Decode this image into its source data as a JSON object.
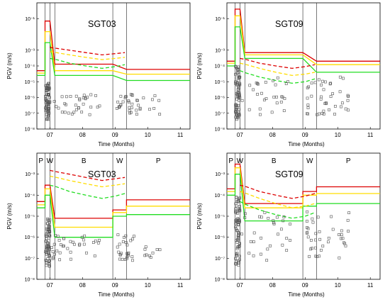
{
  "chart_data": [
    {
      "type": "scatter",
      "title": "SGT03",
      "xlabel": "Time (Months)",
      "ylabel": "PGV (m/s)",
      "y_scale": "log",
      "ylim": [
        1e-08,
        1
      ],
      "xlim": [
        6.6,
        11.3
      ],
      "x_ticks": [
        "07",
        "08",
        "09",
        "10",
        "11"
      ],
      "y_ticks": [
        "10⁻⁸",
        "10⁻⁷",
        "10⁻⁶",
        "10⁻⁵",
        "10⁻⁴",
        "10⁻³",
        "10⁻¹"
      ],
      "period_boundaries": [
        6.85,
        7.0,
        7.15,
        8.93,
        9.35
      ],
      "period_labels": [],
      "colors": {
        "red": "#dd0000",
        "yellow": "#ffdd00",
        "green": "#22dd22",
        "marker": "#555555"
      },
      "series": [
        {
          "color": "red",
          "style": "solid",
          "points": [
            [
              6.6,
              5e-05
            ],
            [
              6.85,
              5e-05
            ],
            [
              6.85,
              0.07
            ],
            [
              7.0,
              0.07
            ],
            [
              7.15,
              0.00013
            ],
            [
              8.93,
              0.00013
            ],
            [
              9.35,
              6e-05
            ],
            [
              11.3,
              6e-05
            ]
          ]
        },
        {
          "color": "yellow",
          "style": "solid",
          "points": [
            [
              6.6,
              3.5e-05
            ],
            [
              6.85,
              3.5e-05
            ],
            [
              6.85,
              0.015
            ],
            [
              7.0,
              0.015
            ],
            [
              7.15,
              5e-05
            ],
            [
              8.93,
              5e-05
            ],
            [
              9.35,
              3e-05
            ],
            [
              11.3,
              3e-05
            ]
          ]
        },
        {
          "color": "green",
          "style": "solid",
          "points": [
            [
              6.6,
              2.5e-05
            ],
            [
              6.85,
              2.5e-05
            ],
            [
              6.85,
              0.003
            ],
            [
              7.0,
              0.003
            ],
            [
              7.15,
              2.5e-05
            ],
            [
              8.93,
              2.5e-05
            ],
            [
              9.35,
              1.2e-05
            ],
            [
              11.3,
              1.2e-05
            ]
          ]
        },
        {
          "color": "red",
          "style": "dashed",
          "points": [
            [
              7.0,
              0.0015
            ],
            [
              7.2,
              0.0013
            ],
            [
              7.6,
              0.001
            ],
            [
              8.1,
              0.0007
            ],
            [
              8.6,
              0.0005
            ],
            [
              9.0,
              0.0006
            ],
            [
              9.3,
              0.0007
            ]
          ]
        },
        {
          "color": "yellow",
          "style": "dashed",
          "points": [
            [
              7.0,
              0.0008
            ],
            [
              7.2,
              0.0007
            ],
            [
              7.6,
              0.0005
            ],
            [
              8.1,
              0.00035
            ],
            [
              8.6,
              0.00025
            ],
            [
              9.0,
              0.0003
            ],
            [
              9.3,
              0.00035
            ]
          ]
        },
        {
          "color": "green",
          "style": "dashed",
          "points": [
            [
              7.0,
              0.0003
            ],
            [
              7.2,
              0.00025
            ],
            [
              7.6,
              0.00015
            ],
            [
              8.1,
              0.0001
            ],
            [
              8.6,
              7e-05
            ],
            [
              9.0,
              9e-05
            ],
            [
              9.3,
              0.00012
            ]
          ]
        }
      ]
    },
    {
      "type": "scatter",
      "title": "SGT09",
      "xlabel": "Time (Months)",
      "ylabel": "PGV (m/s)",
      "y_scale": "log",
      "ylim": [
        1e-08,
        1
      ],
      "xlim": [
        6.6,
        11.3
      ],
      "x_ticks": [
        "07",
        "08",
        "09",
        "10",
        "11"
      ],
      "y_ticks": [
        "10⁻⁸",
        "10⁻⁷",
        "10⁻⁶",
        "10⁻⁵",
        "10⁻⁴",
        "10⁻³",
        "10⁻¹"
      ],
      "period_boundaries": [
        6.85,
        7.0,
        7.15,
        8.93,
        9.35
      ],
      "period_labels": [],
      "colors": {
        "red": "#dd0000",
        "yellow": "#ffdd00",
        "green": "#22dd22",
        "marker": "#555555"
      },
      "series": [
        {
          "color": "red",
          "style": "solid",
          "points": [
            [
              6.6,
              0.0002
            ],
            [
              6.85,
              0.0002
            ],
            [
              6.85,
              0.4
            ],
            [
              7.0,
              0.4
            ],
            [
              7.15,
              0.0007
            ],
            [
              8.93,
              0.0007
            ],
            [
              9.35,
              0.0002
            ],
            [
              11.3,
              0.0002
            ]
          ]
        },
        {
          "color": "yellow",
          "style": "solid",
          "points": [
            [
              6.6,
              0.00015
            ],
            [
              6.85,
              0.00015
            ],
            [
              6.85,
              0.15
            ],
            [
              7.0,
              0.15
            ],
            [
              7.15,
              0.0005
            ],
            [
              8.93,
              0.0005
            ],
            [
              9.35,
              0.00012
            ],
            [
              11.3,
              0.00012
            ]
          ]
        },
        {
          "color": "green",
          "style": "solid",
          "points": [
            [
              6.6,
              0.0001
            ],
            [
              6.85,
              0.0001
            ],
            [
              6.85,
              0.03
            ],
            [
              7.0,
              0.03
            ],
            [
              7.15,
              0.0003
            ],
            [
              8.93,
              0.0003
            ],
            [
              9.35,
              4e-05
            ],
            [
              11.3,
              4e-05
            ]
          ]
        },
        {
          "color": "red",
          "style": "dashed",
          "points": [
            [
              7.0,
              0.0003
            ],
            [
              7.2,
              0.00025
            ],
            [
              7.6,
              0.00015
            ],
            [
              8.1,
              0.0001
            ],
            [
              8.6,
              7e-05
            ],
            [
              9.0,
              9e-05
            ],
            [
              9.3,
              0.00012
            ]
          ]
        },
        {
          "color": "yellow",
          "style": "dashed",
          "points": [
            [
              7.0,
              0.00015
            ],
            [
              7.2,
              0.00012
            ],
            [
              7.6,
              7e-05
            ],
            [
              8.1,
              4e-05
            ],
            [
              8.6,
              2.5e-05
            ],
            [
              9.0,
              3e-05
            ],
            [
              9.3,
              4e-05
            ]
          ]
        },
        {
          "color": "green",
          "style": "dashed",
          "points": [
            [
              7.0,
              5e-05
            ],
            [
              7.2,
              3.5e-05
            ],
            [
              7.6,
              2e-05
            ],
            [
              8.1,
              1.2e-05
            ],
            [
              8.6,
              8e-06
            ],
            [
              9.0,
              1e-05
            ],
            [
              9.3,
              1.5e-05
            ]
          ]
        }
      ]
    },
    {
      "type": "scatter",
      "title": "SGT03",
      "xlabel": "Time (Months)",
      "ylabel": "PGV (m/s)",
      "y_scale": "log",
      "ylim": [
        1e-08,
        0.01
      ],
      "xlim": [
        6.6,
        11.3
      ],
      "x_ticks": [
        "07",
        "08",
        "09",
        "10",
        "11"
      ],
      "y_ticks": [
        "10⁻⁸",
        "10⁻⁷",
        "10⁻⁶",
        "10⁻⁵",
        "10⁻⁴",
        "10⁻³"
      ],
      "period_boundaries": [
        6.85,
        7.0,
        7.15,
        8.93,
        9.35
      ],
      "period_labels": [
        "P",
        "W",
        "B",
        "W",
        "P"
      ],
      "colors": {
        "red": "#dd0000",
        "yellow": "#ffdd00",
        "green": "#22dd22",
        "marker": "#555555"
      },
      "series": [
        {
          "color": "red",
          "style": "solid",
          "points": [
            [
              6.6,
              5e-05
            ],
            [
              6.85,
              5e-05
            ],
            [
              6.85,
              0.0003
            ],
            [
              7.0,
              0.0003
            ],
            [
              7.15,
              8e-06
            ],
            [
              8.93,
              8e-06
            ],
            [
              8.93,
              2e-05
            ],
            [
              9.35,
              2e-05
            ],
            [
              9.35,
              6e-05
            ],
            [
              11.3,
              6e-05
            ]
          ]
        },
        {
          "color": "yellow",
          "style": "solid",
          "points": [
            [
              6.6,
              3.5e-05
            ],
            [
              6.85,
              3.5e-05
            ],
            [
              6.85,
              0.0002
            ],
            [
              7.0,
              0.0002
            ],
            [
              7.15,
              3e-06
            ],
            [
              8.93,
              3e-06
            ],
            [
              8.93,
              1.5e-05
            ],
            [
              9.35,
              1.5e-05
            ],
            [
              9.35,
              3e-05
            ],
            [
              11.3,
              3e-05
            ]
          ]
        },
        {
          "color": "green",
          "style": "solid",
          "points": [
            [
              6.6,
              2.5e-05
            ],
            [
              6.85,
              2.5e-05
            ],
            [
              6.85,
              0.0001
            ],
            [
              7.0,
              0.0001
            ],
            [
              7.15,
              1e-06
            ],
            [
              8.93,
              1e-06
            ],
            [
              8.93,
              1e-05
            ],
            [
              9.35,
              1e-05
            ],
            [
              9.35,
              1.2e-05
            ],
            [
              11.3,
              1.2e-05
            ]
          ]
        },
        {
          "color": "red",
          "style": "dashed",
          "points": [
            [
              7.0,
              0.0015
            ],
            [
              7.2,
              0.0013
            ],
            [
              7.6,
              0.001
            ],
            [
              8.1,
              0.0007
            ],
            [
              8.6,
              0.0005
            ],
            [
              9.0,
              0.0006
            ],
            [
              9.3,
              0.0007
            ]
          ]
        },
        {
          "color": "yellow",
          "style": "dashed",
          "points": [
            [
              7.0,
              0.0008
            ],
            [
              7.2,
              0.0007
            ],
            [
              7.6,
              0.0005
            ],
            [
              8.1,
              0.00035
            ],
            [
              8.6,
              0.00025
            ],
            [
              9.0,
              0.0003
            ],
            [
              9.3,
              0.00035
            ]
          ]
        },
        {
          "color": "green",
          "style": "dashed",
          "points": [
            [
              7.0,
              0.0003
            ],
            [
              7.2,
              0.00025
            ],
            [
              7.6,
              0.00015
            ],
            [
              8.1,
              0.0001
            ],
            [
              8.6,
              7e-05
            ],
            [
              9.0,
              9e-05
            ],
            [
              9.3,
              0.00012
            ]
          ]
        }
      ]
    },
    {
      "type": "scatter",
      "title": "SGT09",
      "xlabel": "Time (Months)",
      "ylabel": "PGV (m/s)",
      "y_scale": "log",
      "ylim": [
        1e-08,
        0.01
      ],
      "xlim": [
        6.6,
        11.3
      ],
      "x_ticks": [
        "07",
        "08",
        "09",
        "10",
        "11"
      ],
      "y_ticks": [
        "10⁻⁸",
        "10⁻⁷",
        "10⁻⁶",
        "10⁻⁵",
        "10⁻⁴",
        "10⁻³"
      ],
      "period_boundaries": [
        6.85,
        7.0,
        7.15,
        8.93,
        9.35
      ],
      "period_labels": [
        "P",
        "W",
        "B",
        "W",
        "P"
      ],
      "colors": {
        "red": "#dd0000",
        "yellow": "#ffdd00",
        "green": "#22dd22",
        "marker": "#555555"
      },
      "series": [
        {
          "color": "red",
          "style": "solid",
          "points": [
            [
              6.6,
              0.0002
            ],
            [
              6.85,
              0.0002
            ],
            [
              6.85,
              0.003
            ],
            [
              7.0,
              0.003
            ],
            [
              7.15,
              4e-05
            ],
            [
              8.93,
              4e-05
            ],
            [
              8.93,
              0.00015
            ],
            [
              9.35,
              0.00015
            ],
            [
              9.35,
              0.00025
            ],
            [
              11.3,
              0.00025
            ]
          ]
        },
        {
          "color": "yellow",
          "style": "solid",
          "points": [
            [
              6.6,
              0.00015
            ],
            [
              6.85,
              0.00015
            ],
            [
              6.85,
              0.002
            ],
            [
              7.0,
              0.002
            ],
            [
              7.15,
              2.5e-05
            ],
            [
              8.93,
              2.5e-05
            ],
            [
              8.93,
              0.0001
            ],
            [
              9.35,
              0.0001
            ],
            [
              9.35,
              0.00012
            ],
            [
              11.3,
              0.00012
            ]
          ]
        },
        {
          "color": "green",
          "style": "solid",
          "points": [
            [
              6.6,
              0.0001
            ],
            [
              6.85,
              0.0001
            ],
            [
              6.85,
              0.001
            ],
            [
              7.0,
              0.001
            ],
            [
              7.15,
              6e-06
            ],
            [
              8.93,
              6e-06
            ],
            [
              8.93,
              3e-05
            ],
            [
              9.35,
              3e-05
            ],
            [
              9.35,
              4e-05
            ],
            [
              11.3,
              4e-05
            ]
          ]
        },
        {
          "color": "red",
          "style": "dashed",
          "points": [
            [
              7.0,
              0.0003
            ],
            [
              7.2,
              0.00025
            ],
            [
              7.6,
              0.00015
            ],
            [
              8.1,
              0.0001
            ],
            [
              8.6,
              7e-05
            ],
            [
              9.0,
              9e-05
            ],
            [
              9.3,
              0.00012
            ]
          ]
        },
        {
          "color": "yellow",
          "style": "dashed",
          "points": [
            [
              7.0,
              0.00015
            ],
            [
              7.2,
              0.00012
            ],
            [
              7.6,
              7e-05
            ],
            [
              8.1,
              4e-05
            ],
            [
              8.6,
              2.5e-05
            ],
            [
              9.0,
              3e-05
            ],
            [
              9.3,
              4e-05
            ]
          ]
        },
        {
          "color": "green",
          "style": "dashed",
          "points": [
            [
              7.0,
              5e-05
            ],
            [
              7.2,
              3.5e-05
            ],
            [
              7.6,
              2e-05
            ],
            [
              8.1,
              1.2e-05
            ],
            [
              8.6,
              8e-06
            ],
            [
              9.0,
              1e-05
            ],
            [
              9.3,
              1.5e-05
            ]
          ]
        }
      ]
    }
  ]
}
